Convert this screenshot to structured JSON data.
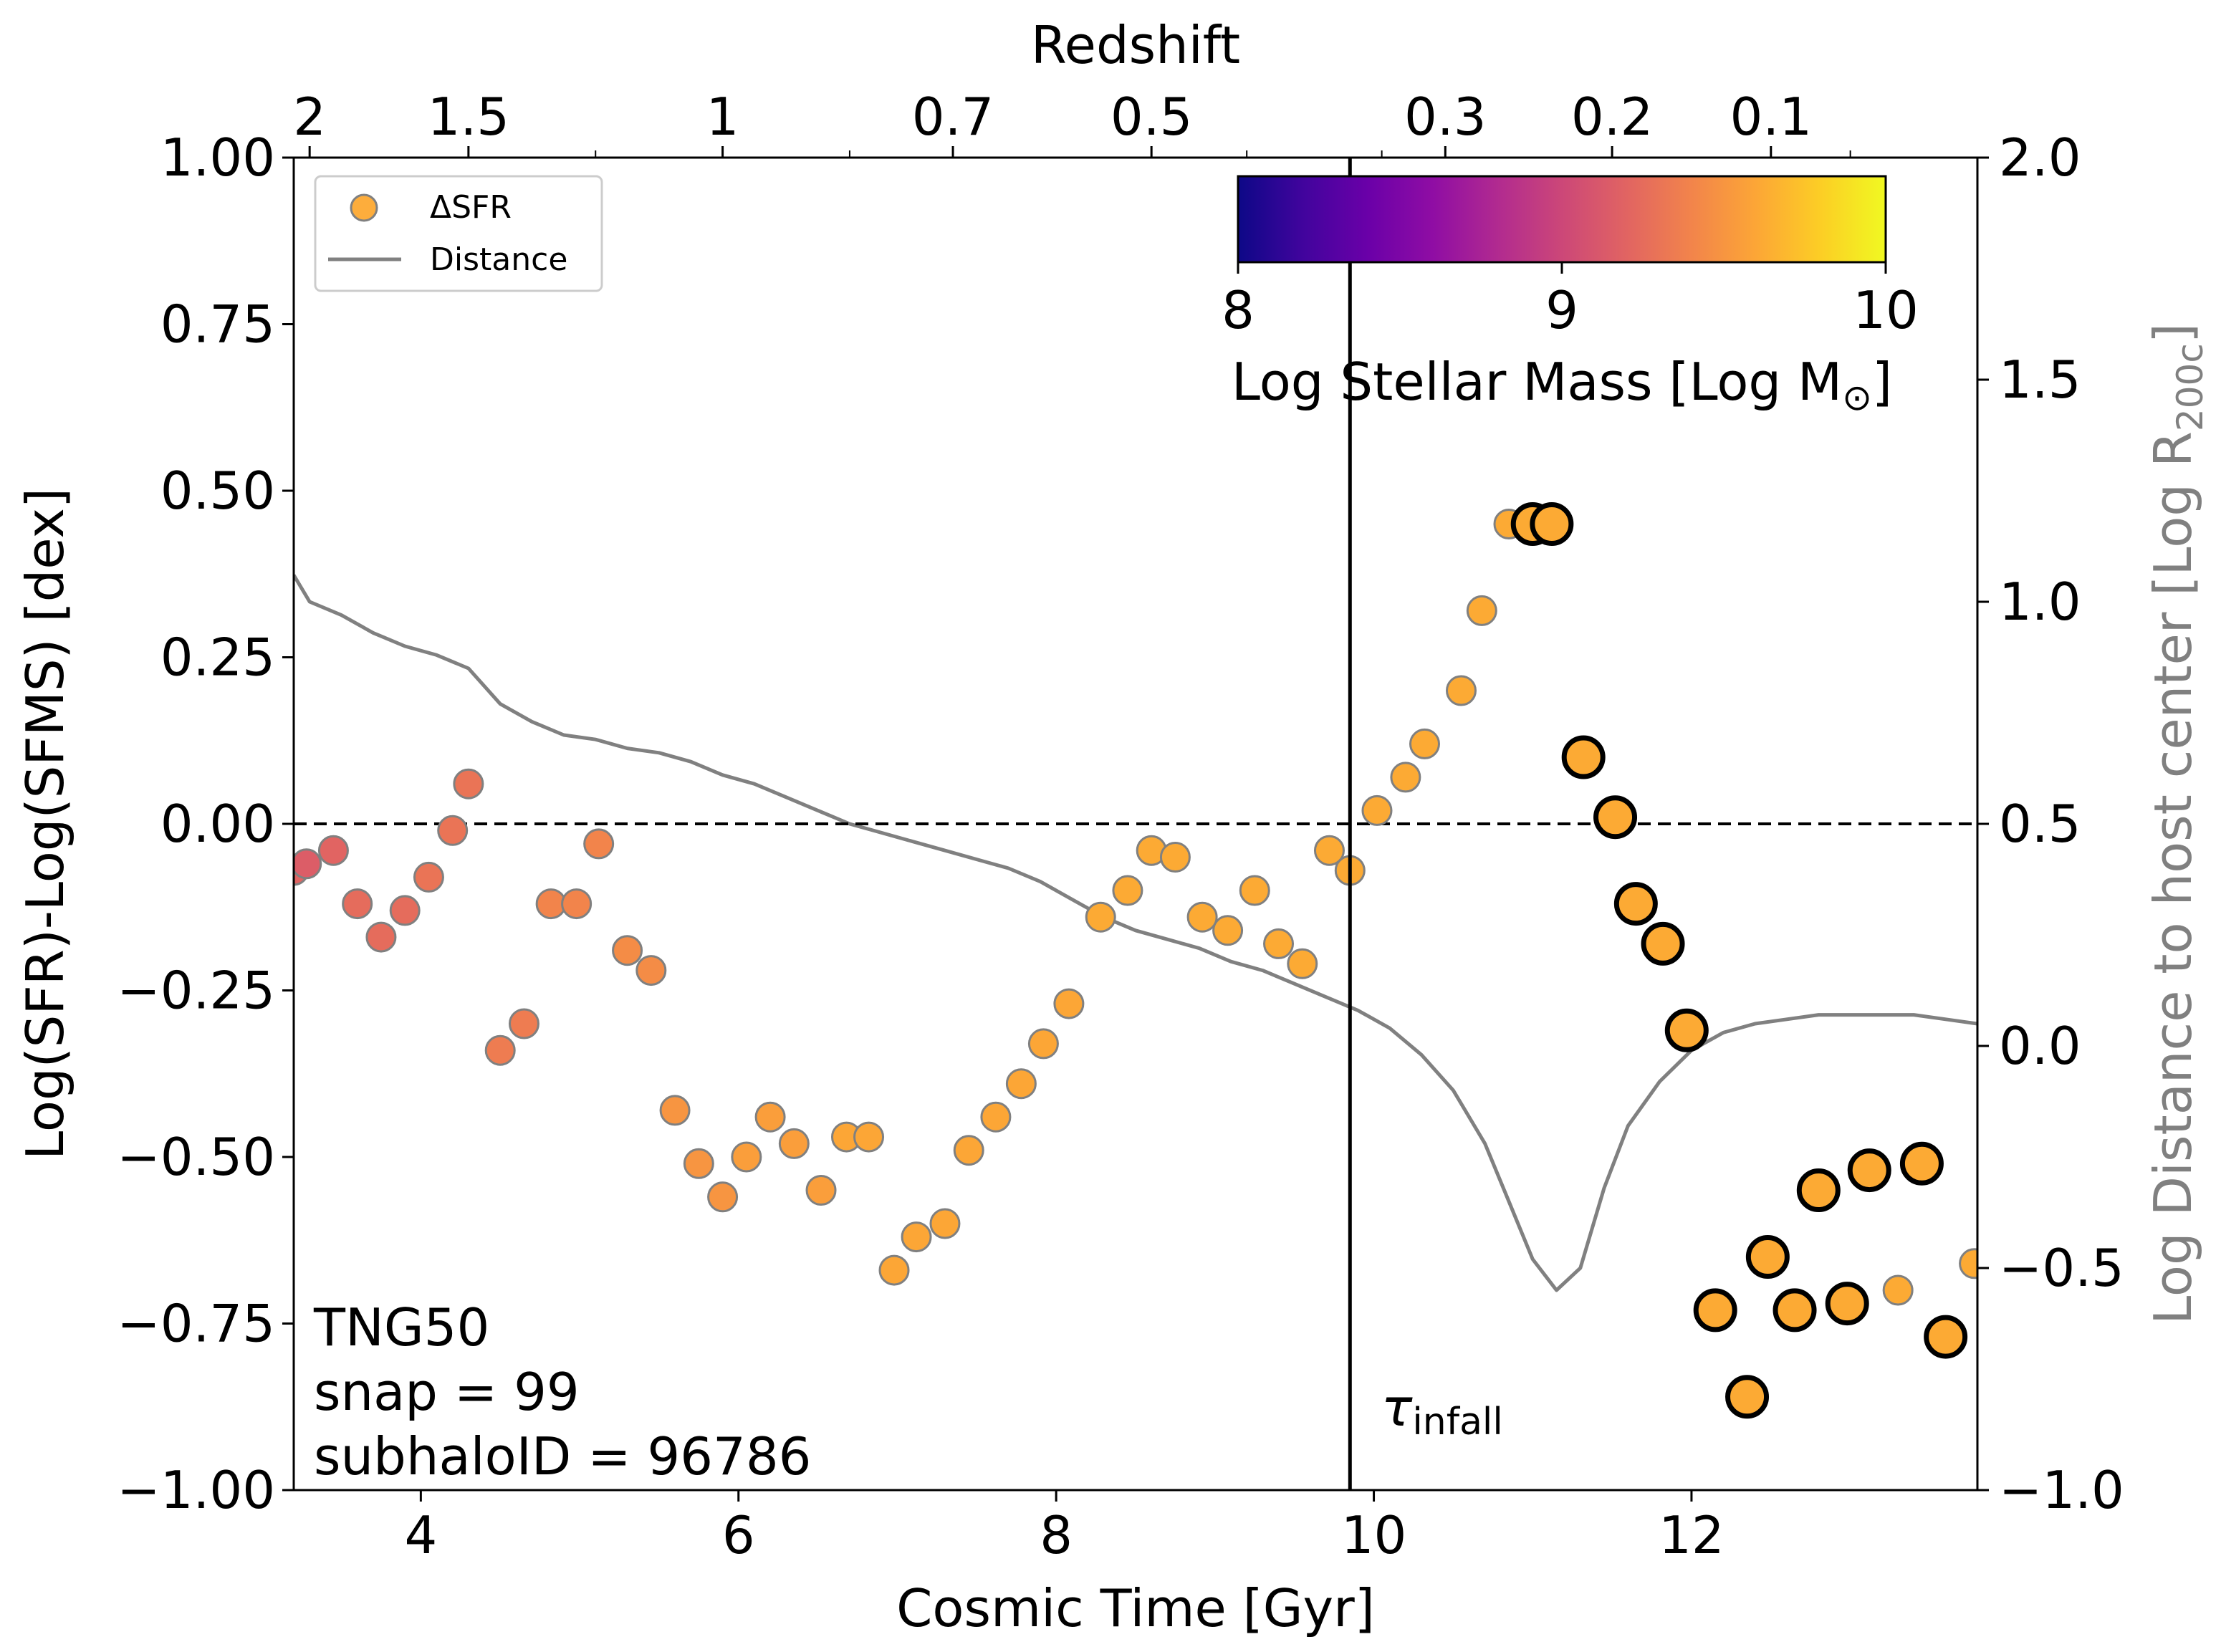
{
  "chart_data": {
    "type": "scatter",
    "title": "",
    "xlabel": "Cosmic Time [Gyr]",
    "ylabel": "Log(SFR)-Log(SFMS) [dex]",
    "y2label_main": "Log Distance to host center [Log R",
    "y2label_sub": "200c",
    "y2label_end": "]",
    "x2label": "Redshift",
    "xlim": [
      3.2,
      13.8
    ],
    "ylim": [
      -1.0,
      1.0
    ],
    "y2lim": [
      -1.0,
      2.0
    ],
    "xticks": [
      4,
      6,
      8,
      10,
      12
    ],
    "yticks": [
      "1.00",
      "0.75",
      "0.50",
      "0.25",
      "0.00",
      "−0.25",
      "−0.50",
      "−0.75",
      "−1.00"
    ],
    "y2ticks": [
      "2.0",
      "1.5",
      "1.0",
      "0.5",
      "0.0",
      "−0.5",
      "−1.0"
    ],
    "redshift_ticks": [
      {
        "label": "2",
        "time": 3.3
      },
      {
        "label": "1.5",
        "time": 4.3
      },
      {
        "label": "1",
        "time": 5.9
      },
      {
        "label": "0.7",
        "time": 7.35
      },
      {
        "label": "0.5",
        "time": 8.6
      },
      {
        "label": "0.3",
        "time": 10.45
      },
      {
        "label": "0.2",
        "time": 11.5
      },
      {
        "label": "0.1",
        "time": 12.5
      }
    ],
    "redshift_minor_ticks": [
      5.1,
      6.7,
      9.2,
      10.05,
      13.0
    ],
    "reference_line_y": 0.0,
    "infall_time": 9.85,
    "infall_label": "τ",
    "infall_label_sub": "infall",
    "legend": [
      {
        "label": "ΔSFR",
        "kind": "marker",
        "color": "#fdad3c"
      },
      {
        "label": "Distance",
        "kind": "line",
        "color": "#808080"
      }
    ],
    "legend_position": "top-left",
    "annotation_lines": [
      "TNG50",
      "snap = 99",
      "subhaloID = 96786"
    ],
    "colorbar": {
      "label_main": "Log Stellar Mass [Log M",
      "label_sub": "⊙",
      "label_end": "]",
      "min": 8,
      "max": 10,
      "ticks": [
        "8",
        "9",
        "10"
      ],
      "colormap": "plasma"
    },
    "series": [
      {
        "name": "ΔSFR",
        "points": [
          {
            "t": 3.2,
            "v": -0.07,
            "m": 9.2,
            "o": false
          },
          {
            "t": 3.28,
            "v": -0.06,
            "m": 9.15,
            "o": false
          },
          {
            "t": 3.45,
            "v": -0.04,
            "m": 9.2,
            "o": false
          },
          {
            "t": 3.6,
            "v": -0.12,
            "m": 9.25,
            "o": false
          },
          {
            "t": 3.75,
            "v": -0.17,
            "m": 9.25,
            "o": false
          },
          {
            "t": 3.9,
            "v": -0.13,
            "m": 9.25,
            "o": false
          },
          {
            "t": 4.05,
            "v": -0.08,
            "m": 9.3,
            "o": false
          },
          {
            "t": 4.2,
            "v": -0.01,
            "m": 9.3,
            "o": false
          },
          {
            "t": 4.3,
            "v": 0.06,
            "m": 9.3,
            "o": false
          },
          {
            "t": 4.5,
            "v": -0.34,
            "m": 9.35,
            "o": false
          },
          {
            "t": 4.65,
            "v": -0.3,
            "m": 9.35,
            "o": false
          },
          {
            "t": 4.82,
            "v": -0.12,
            "m": 9.4,
            "o": false
          },
          {
            "t": 4.98,
            "v": -0.12,
            "m": 9.4,
            "o": false
          },
          {
            "t": 5.12,
            "v": -0.03,
            "m": 9.4,
            "o": false
          },
          {
            "t": 5.3,
            "v": -0.19,
            "m": 9.45,
            "o": false
          },
          {
            "t": 5.45,
            "v": -0.22,
            "m": 9.45,
            "o": false
          },
          {
            "t": 5.6,
            "v": -0.43,
            "m": 9.5,
            "o": false
          },
          {
            "t": 5.75,
            "v": -0.51,
            "m": 9.5,
            "o": false
          },
          {
            "t": 5.9,
            "v": -0.56,
            "m": 9.5,
            "o": false
          },
          {
            "t": 6.05,
            "v": -0.5,
            "m": 9.55,
            "o": false
          },
          {
            "t": 6.2,
            "v": -0.44,
            "m": 9.55,
            "o": false
          },
          {
            "t": 6.35,
            "v": -0.48,
            "m": 9.55,
            "o": false
          },
          {
            "t": 6.52,
            "v": -0.55,
            "m": 9.55,
            "o": false
          },
          {
            "t": 6.68,
            "v": -0.47,
            "m": 9.6,
            "o": false
          },
          {
            "t": 6.82,
            "v": -0.47,
            "m": 9.6,
            "o": false
          },
          {
            "t": 6.98,
            "v": -0.67,
            "m": 9.6,
            "o": false
          },
          {
            "t": 7.12,
            "v": -0.62,
            "m": 9.6,
            "o": false
          },
          {
            "t": 7.3,
            "v": -0.6,
            "m": 9.6,
            "o": false
          },
          {
            "t": 7.45,
            "v": -0.49,
            "m": 9.6,
            "o": false
          },
          {
            "t": 7.62,
            "v": -0.44,
            "m": 9.6,
            "o": false
          },
          {
            "t": 7.78,
            "v": -0.39,
            "m": 9.6,
            "o": false
          },
          {
            "t": 7.92,
            "v": -0.33,
            "m": 9.6,
            "o": false
          },
          {
            "t": 8.08,
            "v": -0.27,
            "m": 9.6,
            "o": false
          },
          {
            "t": 8.28,
            "v": -0.14,
            "m": 9.62,
            "o": false
          },
          {
            "t": 8.45,
            "v": -0.1,
            "m": 9.62,
            "o": false
          },
          {
            "t": 8.6,
            "v": -0.04,
            "m": 9.62,
            "o": false
          },
          {
            "t": 8.75,
            "v": -0.05,
            "m": 9.62,
            "o": false
          },
          {
            "t": 8.92,
            "v": -0.14,
            "m": 9.62,
            "o": false
          },
          {
            "t": 9.08,
            "v": -0.16,
            "m": 9.62,
            "o": false
          },
          {
            "t": 9.25,
            "v": -0.1,
            "m": 9.62,
            "o": false
          },
          {
            "t": 9.4,
            "v": -0.18,
            "m": 9.62,
            "o": false
          },
          {
            "t": 9.55,
            "v": -0.21,
            "m": 9.62,
            "o": false
          },
          {
            "t": 9.72,
            "v": -0.04,
            "m": 9.62,
            "o": false
          },
          {
            "t": 9.85,
            "v": -0.07,
            "m": 9.62,
            "o": false
          },
          {
            "t": 10.02,
            "v": 0.02,
            "m": 9.62,
            "o": false
          },
          {
            "t": 10.2,
            "v": 0.07,
            "m": 9.62,
            "o": false
          },
          {
            "t": 10.32,
            "v": 0.12,
            "m": 9.62,
            "o": false
          },
          {
            "t": 10.55,
            "v": 0.2,
            "m": 9.62,
            "o": false
          },
          {
            "t": 10.68,
            "v": 0.32,
            "m": 9.62,
            "o": false
          },
          {
            "t": 10.85,
            "v": 0.45,
            "m": 9.62,
            "o": false
          },
          {
            "t": 11.0,
            "v": 0.45,
            "m": 9.62,
            "o": true
          },
          {
            "t": 11.12,
            "v": 0.45,
            "m": 9.62,
            "o": true
          },
          {
            "t": 11.32,
            "v": 0.1,
            "m": 9.62,
            "o": true
          },
          {
            "t": 11.52,
            "v": 0.01,
            "m": 9.62,
            "o": true
          },
          {
            "t": 11.65,
            "v": -0.12,
            "m": 9.62,
            "o": true
          },
          {
            "t": 11.82,
            "v": -0.18,
            "m": 9.62,
            "o": true
          },
          {
            "t": 11.97,
            "v": -0.31,
            "m": 9.62,
            "o": true
          },
          {
            "t": 12.15,
            "v": -0.73,
            "m": 9.62,
            "o": true
          },
          {
            "t": 12.35,
            "v": -0.86,
            "m": 9.62,
            "o": true
          },
          {
            "t": 12.48,
            "v": -0.65,
            "m": 9.62,
            "o": true
          },
          {
            "t": 12.65,
            "v": -0.73,
            "m": 9.62,
            "o": true
          },
          {
            "t": 12.8,
            "v": -0.55,
            "m": 9.62,
            "o": true
          },
          {
            "t": 12.98,
            "v": -0.72,
            "m": 9.62,
            "o": true
          },
          {
            "t": 13.12,
            "v": -0.52,
            "m": 9.62,
            "o": true
          },
          {
            "t": 13.3,
            "v": -0.7,
            "m": 9.62,
            "o": false
          },
          {
            "t": 13.45,
            "v": -0.51,
            "m": 9.62,
            "o": true
          },
          {
            "t": 13.6,
            "v": -0.77,
            "m": 9.62,
            "o": true
          },
          {
            "t": 13.78,
            "v": -0.66,
            "m": 9.62,
            "o": false
          }
        ]
      },
      {
        "name": "Distance",
        "axis": "right",
        "color": "#808080",
        "x": [
          3.2,
          3.3,
          3.5,
          3.7,
          3.9,
          4.1,
          4.3,
          4.5,
          4.7,
          4.9,
          5.1,
          5.3,
          5.5,
          5.7,
          5.9,
          6.1,
          6.3,
          6.5,
          6.7,
          6.9,
          7.1,
          7.3,
          7.5,
          7.7,
          7.9,
          8.1,
          8.3,
          8.5,
          8.7,
          8.9,
          9.1,
          9.3,
          9.5,
          9.7,
          9.9,
          10.1,
          10.3,
          10.5,
          10.7,
          10.85,
          11.0,
          11.15,
          11.3,
          11.45,
          11.6,
          11.8,
          12.0,
          12.2,
          12.4,
          12.6,
          12.8,
          13.0,
          13.2,
          13.4,
          13.6,
          13.8
        ],
        "values": [
          1.06,
          1.0,
          0.97,
          0.93,
          0.9,
          0.88,
          0.85,
          0.77,
          0.73,
          0.7,
          0.69,
          0.67,
          0.66,
          0.64,
          0.61,
          0.59,
          0.56,
          0.53,
          0.5,
          0.48,
          0.46,
          0.44,
          0.42,
          0.4,
          0.37,
          0.33,
          0.29,
          0.26,
          0.24,
          0.22,
          0.19,
          0.17,
          0.14,
          0.11,
          0.08,
          0.04,
          -0.02,
          -0.1,
          -0.22,
          -0.35,
          -0.48,
          -0.55,
          -0.5,
          -0.32,
          -0.18,
          -0.08,
          -0.01,
          0.03,
          0.05,
          0.06,
          0.07,
          0.07,
          0.07,
          0.07,
          0.06,
          0.05
        ]
      }
    ]
  }
}
